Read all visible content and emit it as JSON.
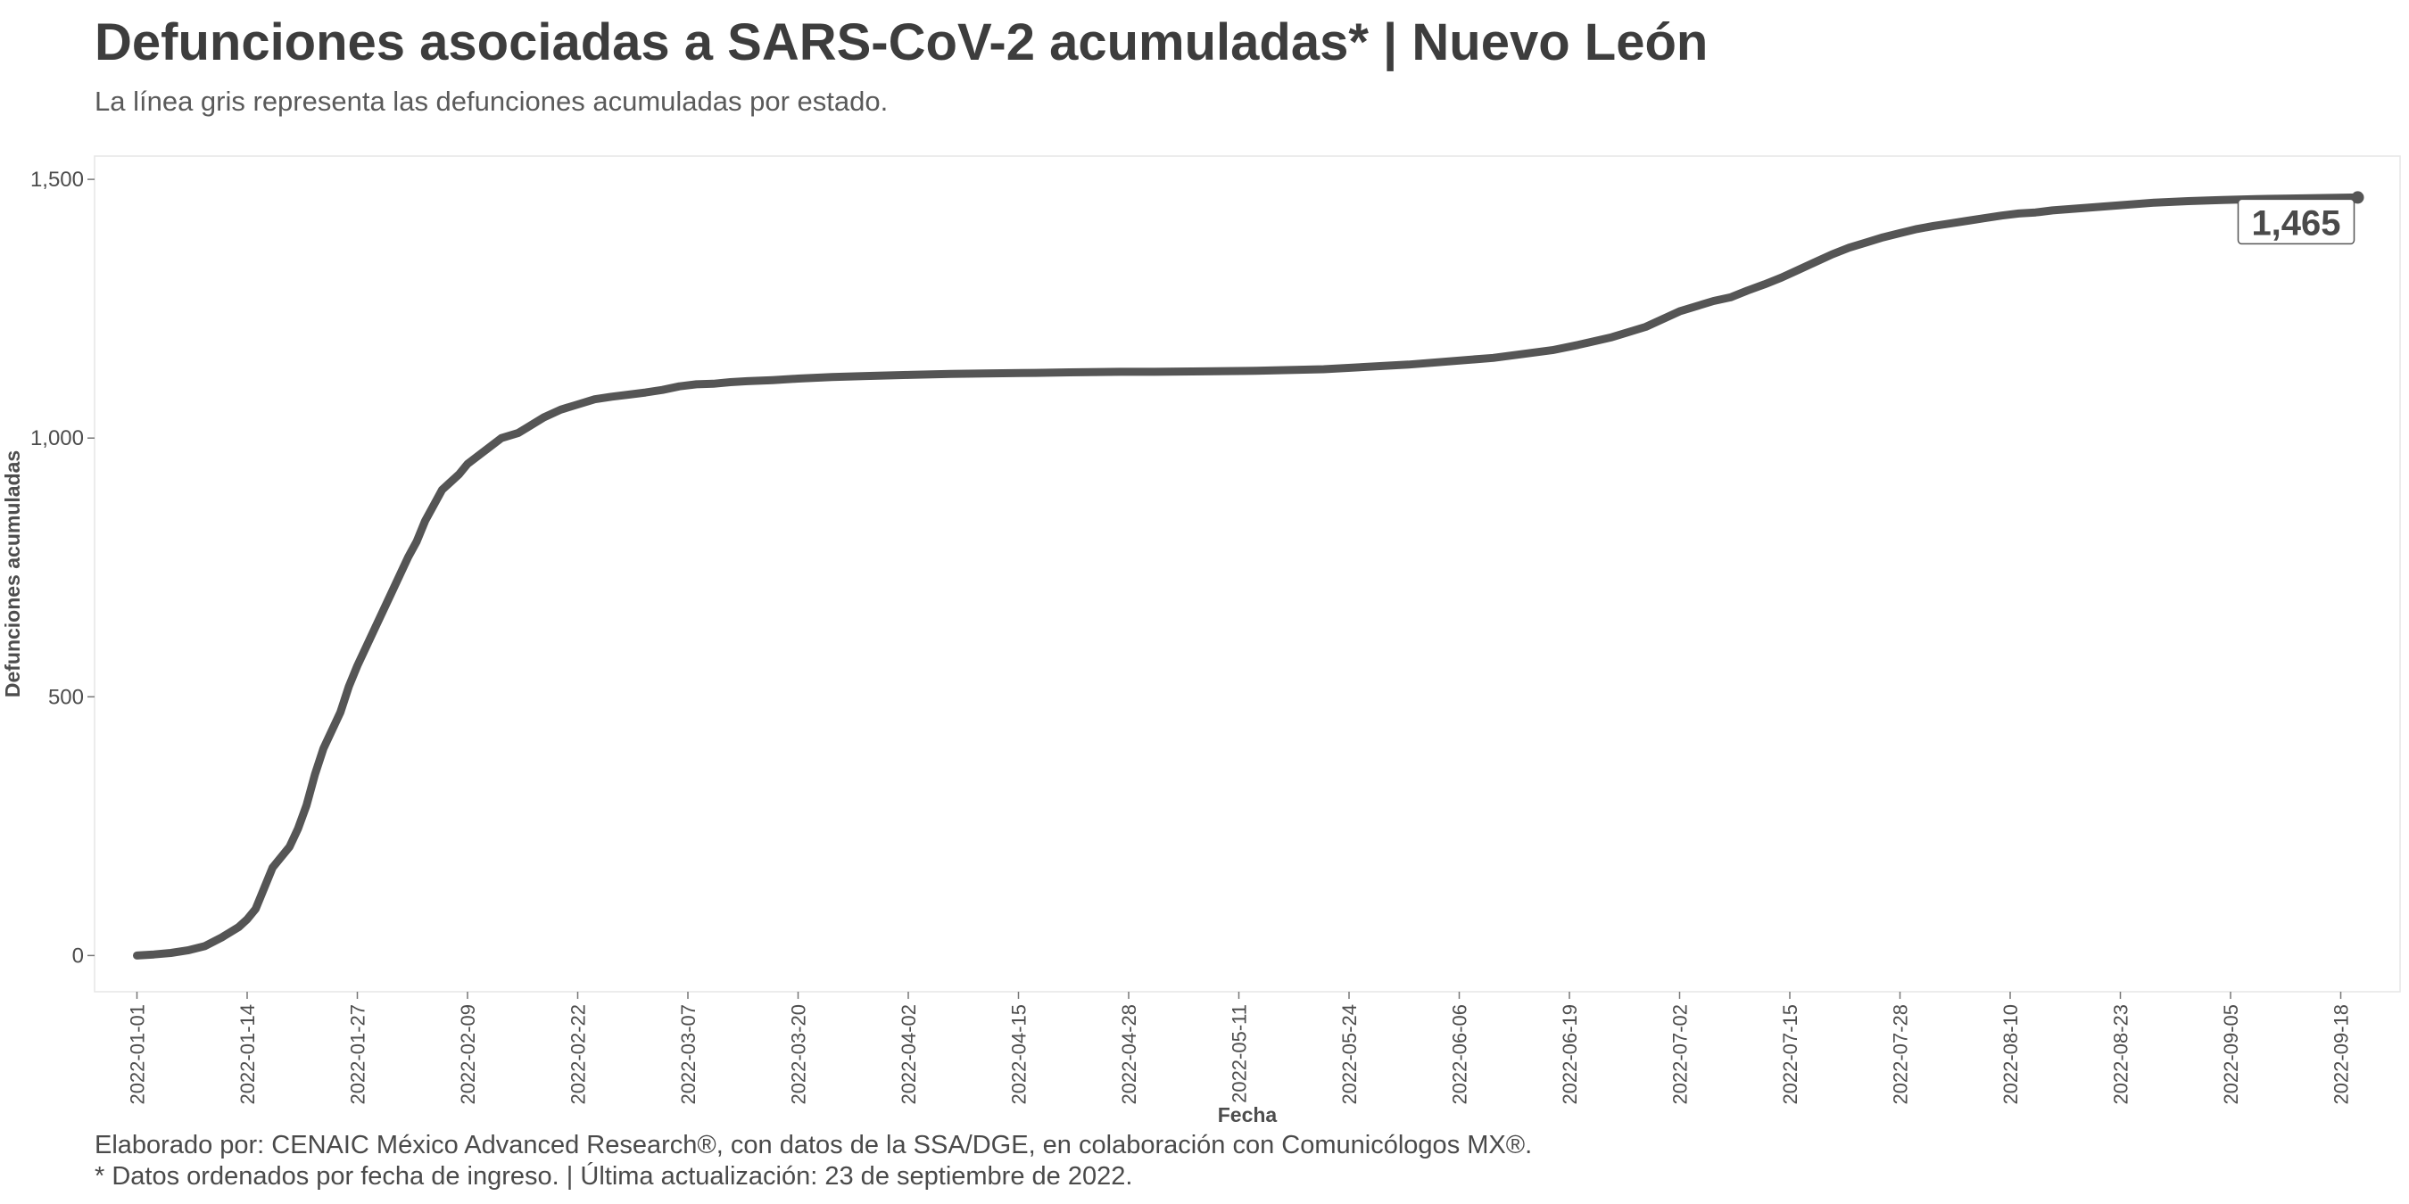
{
  "header": {
    "title": "Defunciones asociadas a SARS-CoV-2 acumuladas* | Nuevo León",
    "subtitle": "La línea gris representa las defunciones acumuladas por estado."
  },
  "footer": {
    "credit": "Elaborado por: CENAIC México Advanced Research®, con datos de la SSA/DGE, en colaboración con Comunicólogos MX®.",
    "note": "* Datos ordenados por fecha de ingreso. | Última actualización: 23 de septiembre de 2022."
  },
  "colors": {
    "line": "#555555",
    "panel_border": "#e6e6e6",
    "tick": "#777777"
  },
  "chart_data": {
    "type": "line",
    "title": "Defunciones asociadas a SARS-CoV-2 acumuladas* | Nuevo León",
    "xlabel": "Fecha",
    "ylabel": "Defunciones acumuladas",
    "ylim": [
      -70,
      1545
    ],
    "xlim_days": [
      -5,
      267
    ],
    "yticks": [
      0,
      500,
      1000,
      1500
    ],
    "ytick_labels": [
      "0",
      "500",
      "1,000",
      "1,500"
    ],
    "xtick_days": [
      0,
      13,
      26,
      39,
      52,
      65,
      78,
      91,
      104,
      117,
      130,
      143,
      156,
      169,
      182,
      195,
      208,
      221,
      234,
      247,
      260
    ],
    "xtick_labels": [
      "2022-01-01",
      "2022-01-14",
      "2022-01-27",
      "2022-02-09",
      "2022-02-22",
      "2022-03-07",
      "2022-03-20",
      "2022-04-02",
      "2022-04-15",
      "2022-04-28",
      "2022-05-11",
      "2022-05-24",
      "2022-06-06",
      "2022-06-19",
      "2022-07-02",
      "2022-07-15",
      "2022-07-28",
      "2022-08-10",
      "2022-08-23",
      "2022-09-05",
      "2022-09-18"
    ],
    "series": [
      {
        "name": "Nuevo León",
        "x_day": [
          0,
          2,
          4,
          6,
          8,
          10,
          12,
          13,
          14,
          16,
          18,
          19,
          20,
          21,
          22,
          24,
          25,
          26,
          28,
          30,
          32,
          33,
          34,
          35,
          36,
          37,
          38,
          39,
          41,
          43,
          44,
          45,
          46,
          48,
          50,
          52,
          54,
          56,
          58,
          60,
          62,
          64,
          66,
          68,
          70,
          72,
          75,
          78,
          82,
          86,
          91,
          96,
          100,
          106,
          110,
          116,
          120,
          126,
          132,
          140,
          150,
          160,
          167,
          170,
          174,
          178,
          182,
          186,
          188,
          190,
          192,
          194,
          196,
          198,
          200,
          202,
          204,
          206,
          208,
          210,
          212,
          214,
          216,
          218,
          220,
          222,
          224,
          226,
          230,
          234,
          238,
          242,
          246,
          250,
          254,
          258,
          262
        ],
        "values": [
          0,
          2,
          5,
          10,
          18,
          35,
          55,
          70,
          90,
          170,
          210,
          245,
          290,
          350,
          400,
          470,
          520,
          560,
          630,
          700,
          770,
          800,
          840,
          870,
          900,
          915,
          930,
          950,
          975,
          1000,
          1005,
          1010,
          1020,
          1040,
          1055,
          1065,
          1075,
          1080,
          1084,
          1088,
          1093,
          1100,
          1104,
          1105,
          1108,
          1110,
          1112,
          1115,
          1118,
          1120,
          1122,
          1124,
          1125,
          1126,
          1127,
          1128,
          1128,
          1129,
          1130,
          1133,
          1142,
          1155,
          1170,
          1180,
          1195,
          1215,
          1245,
          1265,
          1272,
          1285,
          1297,
          1310,
          1325,
          1340,
          1355,
          1368,
          1378,
          1388,
          1396,
          1404,
          1410,
          1415,
          1420,
          1425,
          1430,
          1434,
          1436,
          1440,
          1445,
          1450,
          1455,
          1458,
          1460,
          1462,
          1463,
          1464,
          1465
        ]
      }
    ],
    "annotation": {
      "x_day": 262,
      "value": 1465,
      "text": "1,465"
    }
  }
}
